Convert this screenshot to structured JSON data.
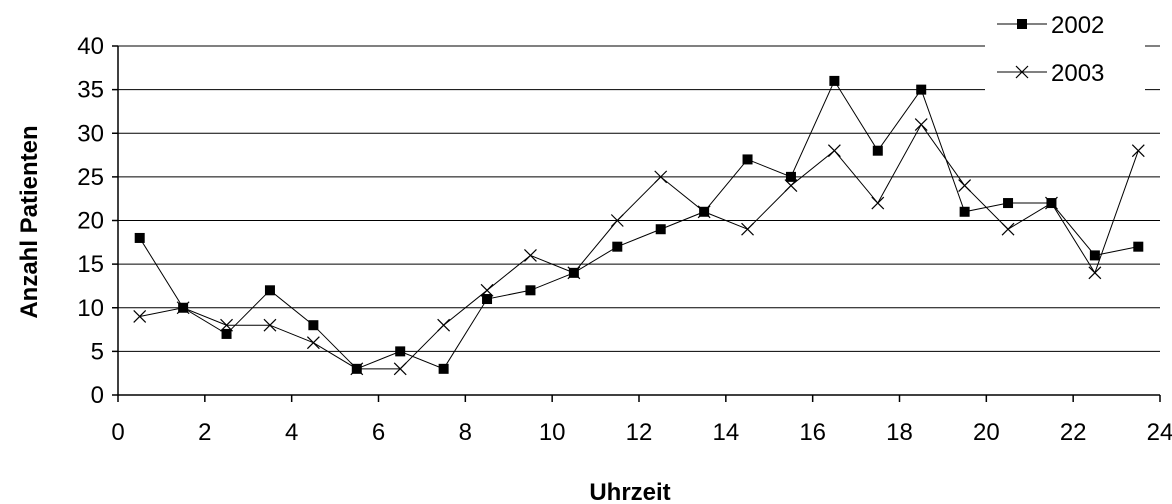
{
  "chart_data": {
    "type": "line",
    "xlabel": "Uhrzeit",
    "ylabel": "Anzahl Patienten",
    "xlim": [
      0,
      24
    ],
    "ylim": [
      0,
      40
    ],
    "xticks": [
      0,
      2,
      4,
      6,
      8,
      10,
      12,
      14,
      16,
      18,
      20,
      22,
      24
    ],
    "yticks": [
      0,
      5,
      10,
      15,
      20,
      25,
      30,
      35,
      40
    ],
    "grid": "horizontal",
    "legend_position": "top-right",
    "x": [
      0.5,
      1.5,
      2.5,
      3.5,
      4.5,
      5.5,
      6.5,
      7.5,
      8.5,
      9.5,
      10.5,
      11.5,
      12.5,
      13.5,
      14.5,
      15.5,
      16.5,
      17.5,
      18.5,
      19.5,
      20.5,
      21.5,
      22.5,
      23.5
    ],
    "series": [
      {
        "name": "2002",
        "marker": "square",
        "values": [
          18,
          10,
          7,
          12,
          8,
          3,
          5,
          3,
          11,
          12,
          14,
          17,
          19,
          21,
          27,
          25,
          36,
          28,
          35,
          21,
          22,
          22,
          16,
          17
        ]
      },
      {
        "name": "2003",
        "marker": "x",
        "values": [
          9,
          10,
          8,
          8,
          6,
          3,
          3,
          8,
          12,
          16,
          14,
          20,
          25,
          21,
          19,
          24,
          28,
          22,
          31,
          24,
          19,
          22,
          14,
          28
        ]
      }
    ],
    "colors": {
      "line": "#000000",
      "grid": "#000000",
      "background": "#ffffff"
    }
  }
}
